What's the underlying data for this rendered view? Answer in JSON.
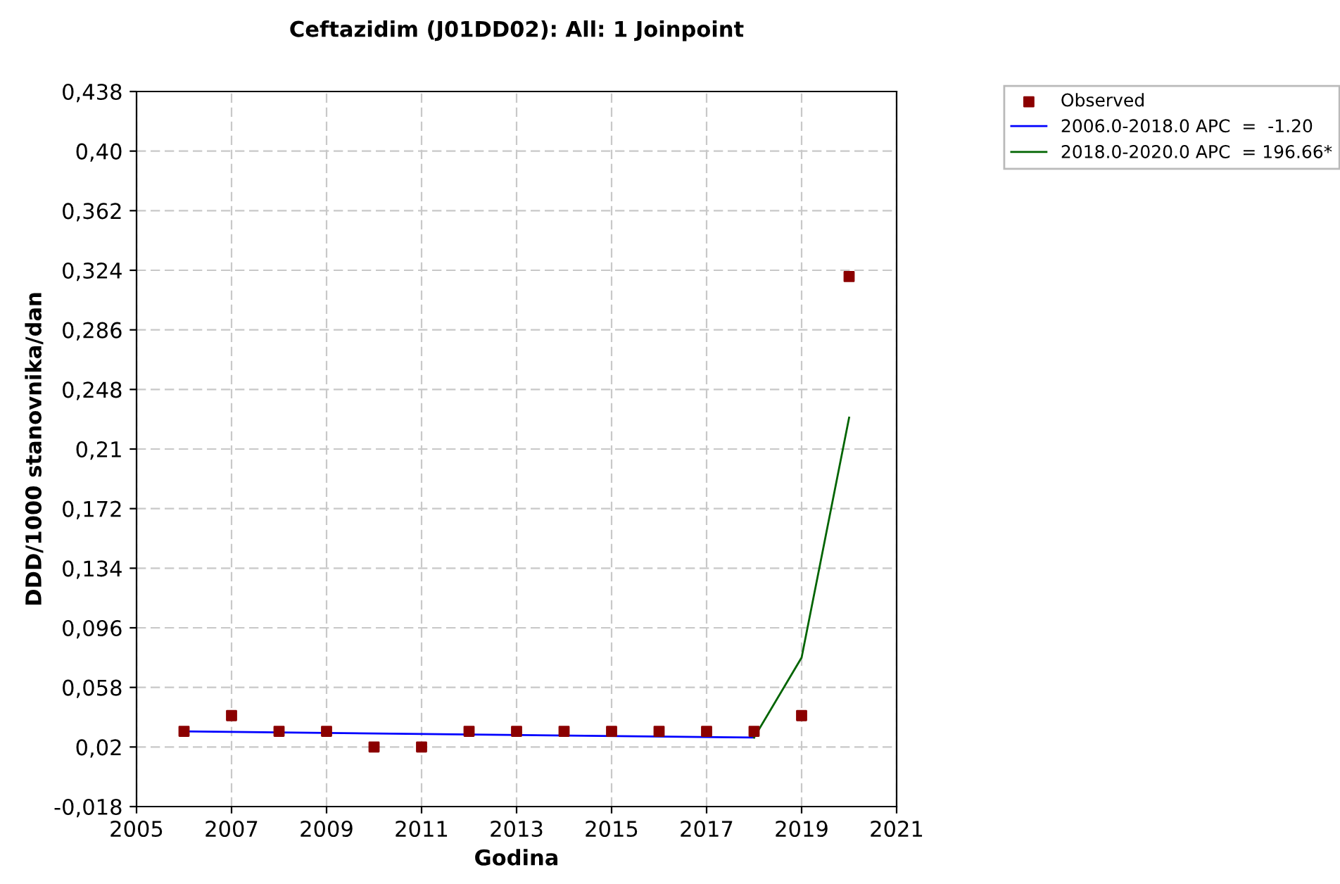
{
  "chart_data": {
    "type": "line",
    "title": "Ceftazidim (J01DD02): All: 1 Joinpoint",
    "xlabel": "Godina",
    "ylabel": "DDD/1000 stanovnika/dan",
    "series": [
      {
        "name": "Observed",
        "type": "scatter",
        "marker": "square",
        "color": "#8b0000",
        "x": [
          2006,
          2007,
          2008,
          2009,
          2010,
          2011,
          2012,
          2013,
          2014,
          2015,
          2016,
          2017,
          2018,
          2019,
          2020
        ],
        "values": [
          0.03,
          0.04,
          0.03,
          0.03,
          0.02,
          0.02,
          0.03,
          0.03,
          0.03,
          0.03,
          0.03,
          0.03,
          0.03,
          0.04,
          0.32
        ]
      },
      {
        "name": "2006.0-2018.0 APC  =  -1.20",
        "color": "#0000ff",
        "x": [
          2006,
          2018
        ],
        "values": [
          0.03,
          0.026
        ]
      },
      {
        "name": "2018.0-2020.0 APC  = 196.66*",
        "color": "#006400",
        "x": [
          2018,
          2019,
          2020
        ],
        "values": [
          0.026,
          0.077,
          0.23
        ]
      }
    ],
    "xlim": [
      2005,
      2021
    ],
    "xticks": [
      2005,
      2007,
      2009,
      2011,
      2013,
      2015,
      2017,
      2019,
      2021
    ],
    "ylim": [
      -0.018,
      0.438
    ],
    "yticks": [
      {
        "value": -0.018,
        "label": "-0,018"
      },
      {
        "value": 0.02,
        "label": "0,02"
      },
      {
        "value": 0.058,
        "label": "0,058"
      },
      {
        "value": 0.096,
        "label": "0,096"
      },
      {
        "value": 0.134,
        "label": "0,134"
      },
      {
        "value": 0.172,
        "label": "0,172"
      },
      {
        "value": 0.21,
        "label": "0,21"
      },
      {
        "value": 0.248,
        "label": "0,248"
      },
      {
        "value": 0.286,
        "label": "0,286"
      },
      {
        "value": 0.324,
        "label": "0,324"
      },
      {
        "value": 0.362,
        "label": "0,362"
      },
      {
        "value": 0.4,
        "label": "0,40"
      },
      {
        "value": 0.438,
        "label": "0,438"
      }
    ],
    "grid": true,
    "legend": "top right"
  }
}
